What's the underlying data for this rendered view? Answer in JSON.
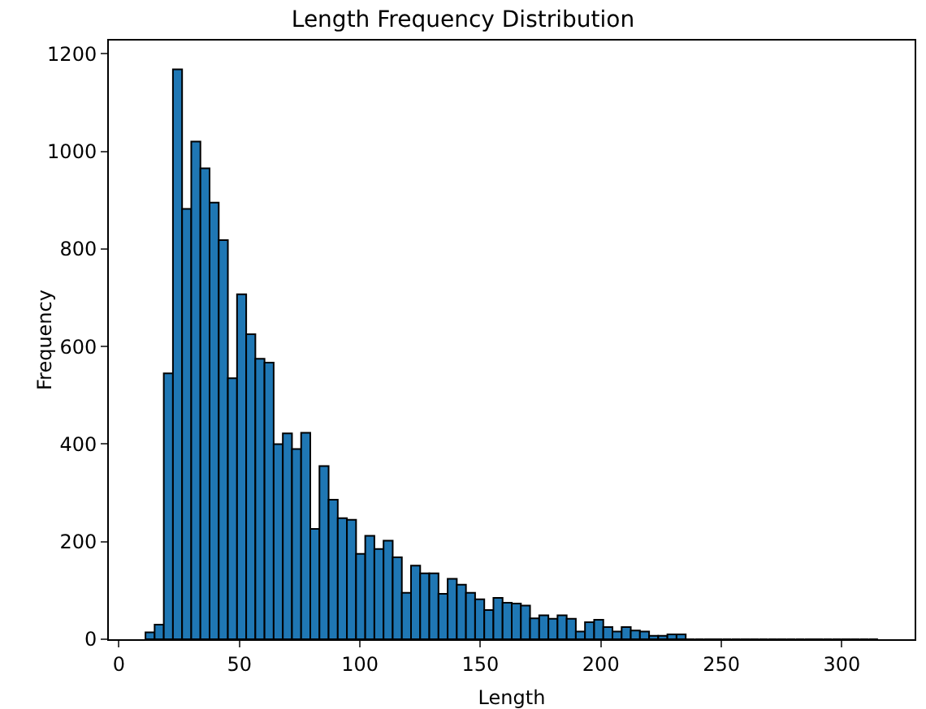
{
  "chart_data": {
    "type": "histogram",
    "title": "Length Frequency Distribution",
    "xlabel": "Length",
    "ylabel": "Frequency",
    "color": "#1f77b4",
    "bins": [
      11,
      14.8,
      18.6,
      22.4,
      26.2,
      30,
      33.8,
      37.6,
      41.4,
      45.2,
      49,
      52.8,
      56.6,
      60.4,
      64.2,
      68,
      71.8,
      75.6,
      79.4,
      83.2,
      87,
      90.8,
      94.6,
      98.4,
      102.2,
      106,
      109.8,
      113.6,
      117.4,
      121.2,
      125,
      128.8,
      132.6,
      136.4,
      140.2,
      144,
      147.8,
      151.6,
      155.4,
      159.2,
      163,
      166.8,
      170.6,
      174.4,
      178.2,
      182,
      185.8,
      189.6,
      193.4,
      197.2,
      201,
      204.8,
      208.6,
      212.4,
      216.2,
      220,
      223.8,
      227.6,
      231.4,
      235.2,
      239,
      242.8,
      246.6,
      250.4,
      254.2,
      258,
      261.8,
      265.6,
      269.4,
      273.2,
      277,
      280.8,
      284.6,
      288.4,
      292.2,
      296,
      299.8,
      303.6,
      307.4,
      311.2,
      315
    ],
    "values": [
      14,
      30,
      545,
      1168,
      882,
      1020,
      965,
      895,
      818,
      535,
      707,
      625,
      575,
      567,
      400,
      422,
      390,
      423,
      226,
      355,
      286,
      248,
      245,
      175,
      212,
      185,
      202,
      168,
      95,
      151,
      135,
      135,
      93,
      124,
      112,
      95,
      82,
      60,
      85,
      75,
      73,
      69,
      43,
      49,
      42,
      49,
      42,
      16,
      35,
      40,
      25,
      16,
      25,
      18,
      16,
      7,
      7,
      10,
      10,
      0,
      0,
      0,
      0,
      0,
      0,
      0,
      0,
      0,
      0,
      0,
      0,
      0,
      0,
      0,
      0,
      0,
      0,
      0,
      0,
      0
    ],
    "xlim": [
      -4.2,
      330.2
    ],
    "xticks": [
      0,
      50,
      100,
      150,
      200,
      250,
      300
    ],
    "ylim": [
      0,
      1227
    ],
    "yticks": [
      0,
      200,
      400,
      600,
      800,
      1000,
      1200
    ],
    "grid": false
  }
}
